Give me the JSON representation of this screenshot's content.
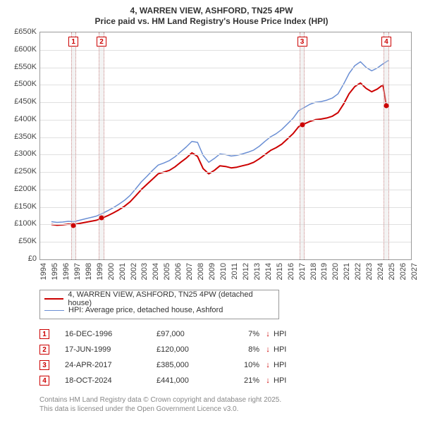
{
  "title_line1": "4, WARREN VIEW, ASHFORD, TN25 4PW",
  "title_line2": "Price paid vs. HM Land Registry's House Price Index (HPI)",
  "chart": {
    "type": "line",
    "background_color": "#ffffff",
    "grid_color": "#e0e0e0",
    "axis_color": "#999999",
    "x": {
      "min": 1994,
      "max": 2027,
      "tick_step": 1,
      "tick_labels": [
        "1994",
        "1995",
        "1996",
        "1997",
        "1998",
        "1999",
        "2000",
        "2001",
        "2002",
        "2003",
        "2004",
        "2005",
        "2006",
        "2007",
        "2008",
        "2009",
        "2010",
        "2011",
        "2012",
        "2013",
        "2014",
        "2015",
        "2016",
        "2017",
        "2018",
        "2019",
        "2020",
        "2021",
        "2022",
        "2023",
        "2024",
        "2025",
        "2026",
        "2027"
      ],
      "label_fontsize": 11,
      "label_rotation_deg": -90
    },
    "y": {
      "min": 0,
      "max": 650000,
      "tick_step": 50000,
      "tick_labels": [
        "£0",
        "£50K",
        "£100K",
        "£150K",
        "£200K",
        "£250K",
        "£300K",
        "£350K",
        "£400K",
        "£450K",
        "£500K",
        "£550K",
        "£600K",
        "£650K"
      ],
      "label_fontsize": 11
    },
    "series": [
      {
        "name": "4, WARREN VIEW, ASHFORD, TN25 4PW (detached house)",
        "color": "#cc0000",
        "line_width": 2,
        "x": [
          1995.0,
          1995.5,
          1996.0,
          1996.5,
          1997.0,
          1997.5,
          1998.0,
          1998.5,
          1999.0,
          1999.5,
          2000.0,
          2000.5,
          2001.0,
          2001.5,
          2002.0,
          2002.5,
          2003.0,
          2003.5,
          2004.0,
          2004.5,
          2005.0,
          2005.5,
          2006.0,
          2006.5,
          2007.0,
          2007.5,
          2008.0,
          2008.5,
          2009.0,
          2009.5,
          2010.0,
          2010.5,
          2011.0,
          2011.5,
          2012.0,
          2012.5,
          2013.0,
          2013.5,
          2014.0,
          2014.5,
          2015.0,
          2015.5,
          2016.0,
          2016.5,
          2017.0,
          2017.5,
          2018.0,
          2018.5,
          2019.0,
          2019.5,
          2020.0,
          2020.5,
          2021.0,
          2021.5,
          2022.0,
          2022.5,
          2023.0,
          2023.5,
          2024.0,
          2024.5,
          2024.8,
          2025.0
        ],
        "y": [
          100000,
          98000,
          99000,
          101000,
          100000,
          103000,
          106000,
          109000,
          112000,
          118000,
          125000,
          133000,
          142000,
          152000,
          165000,
          182000,
          200000,
          215000,
          230000,
          245000,
          250000,
          255000,
          265000,
          278000,
          290000,
          305000,
          295000,
          260000,
          245000,
          255000,
          268000,
          266000,
          262000,
          264000,
          268000,
          272000,
          278000,
          288000,
          300000,
          312000,
          320000,
          330000,
          345000,
          360000,
          380000,
          388000,
          395000,
          400000,
          402000,
          405000,
          410000,
          420000,
          445000,
          475000,
          495000,
          505000,
          490000,
          480000,
          488000,
          500000,
          441000,
          440000
        ]
      },
      {
        "name": "HPI: Average price, detached house, Ashford",
        "color": "#6b8fd4",
        "line_width": 1.5,
        "x": [
          1995.0,
          1995.5,
          1996.0,
          1996.5,
          1997.0,
          1997.5,
          1998.0,
          1998.5,
          1999.0,
          1999.5,
          2000.0,
          2000.5,
          2001.0,
          2001.5,
          2002.0,
          2002.5,
          2003.0,
          2003.5,
          2004.0,
          2004.5,
          2005.0,
          2005.5,
          2006.0,
          2006.5,
          2007.0,
          2007.5,
          2008.0,
          2008.5,
          2009.0,
          2009.5,
          2010.0,
          2010.5,
          2011.0,
          2011.5,
          2012.0,
          2012.5,
          2013.0,
          2013.5,
          2014.0,
          2014.5,
          2015.0,
          2015.5,
          2016.0,
          2016.5,
          2017.0,
          2017.5,
          2018.0,
          2018.5,
          2019.0,
          2019.5,
          2020.0,
          2020.5,
          2021.0,
          2021.5,
          2022.0,
          2022.5,
          2023.0,
          2023.5,
          2024.0,
          2024.5,
          2025.0
        ],
        "y": [
          108000,
          106000,
          107000,
          109000,
          108000,
          112000,
          116000,
          120000,
          124000,
          131000,
          139000,
          148000,
          158000,
          169000,
          183000,
          202000,
          222000,
          238000,
          255000,
          270000,
          276000,
          283000,
          294000,
          308000,
          322000,
          338000,
          335000,
          298000,
          278000,
          289000,
          302000,
          300000,
          296000,
          298000,
          302000,
          307000,
          313000,
          324000,
          338000,
          351000,
          360000,
          372000,
          388000,
          404000,
          426000,
          435000,
          444000,
          450000,
          452000,
          456000,
          462000,
          474000,
          502000,
          533000,
          555000,
          566000,
          550000,
          540000,
          548000,
          560000,
          570000
        ]
      }
    ],
    "marker_bands": [
      {
        "x": 1996.96,
        "width_years": 0.45,
        "label": "1"
      },
      {
        "x": 1999.46,
        "width_years": 0.45,
        "label": "2"
      },
      {
        "x": 2017.31,
        "width_years": 0.45,
        "label": "3"
      },
      {
        "x": 2024.8,
        "width_years": 0.45,
        "label": "4"
      }
    ],
    "price_points": [
      {
        "x": 1996.96,
        "y": 97000
      },
      {
        "x": 1999.46,
        "y": 120000
      },
      {
        "x": 2017.31,
        "y": 385000
      },
      {
        "x": 2024.8,
        "y": 441000
      }
    ]
  },
  "legend": {
    "items": [
      {
        "label": "4, WARREN VIEW, ASHFORD, TN25 4PW (detached house)",
        "color": "#cc0000",
        "width": 2
      },
      {
        "label": "HPI: Average price, detached house, Ashford",
        "color": "#6b8fd4",
        "width": 1.5
      }
    ]
  },
  "transactions": {
    "columns": [
      "marker",
      "date",
      "price",
      "delta",
      "direction",
      "vs"
    ],
    "rows": [
      {
        "marker": "1",
        "date": "16-DEC-1996",
        "price": "£97,000",
        "delta": "7%",
        "direction": "↓",
        "vs": "HPI"
      },
      {
        "marker": "2",
        "date": "17-JUN-1999",
        "price": "£120,000",
        "delta": "8%",
        "direction": "↓",
        "vs": "HPI"
      },
      {
        "marker": "3",
        "date": "24-APR-2017",
        "price": "£385,000",
        "delta": "10%",
        "direction": "↓",
        "vs": "HPI"
      },
      {
        "marker": "4",
        "date": "18-OCT-2024",
        "price": "£441,000",
        "delta": "21%",
        "direction": "↓",
        "vs": "HPI"
      }
    ],
    "arrow_color": "#cc0000",
    "marker_border_color": "#cc0000"
  },
  "footer": {
    "line1": "Contains HM Land Registry data © Crown copyright and database right 2025.",
    "line2": "This data is licensed under the Open Government Licence v3.0."
  }
}
